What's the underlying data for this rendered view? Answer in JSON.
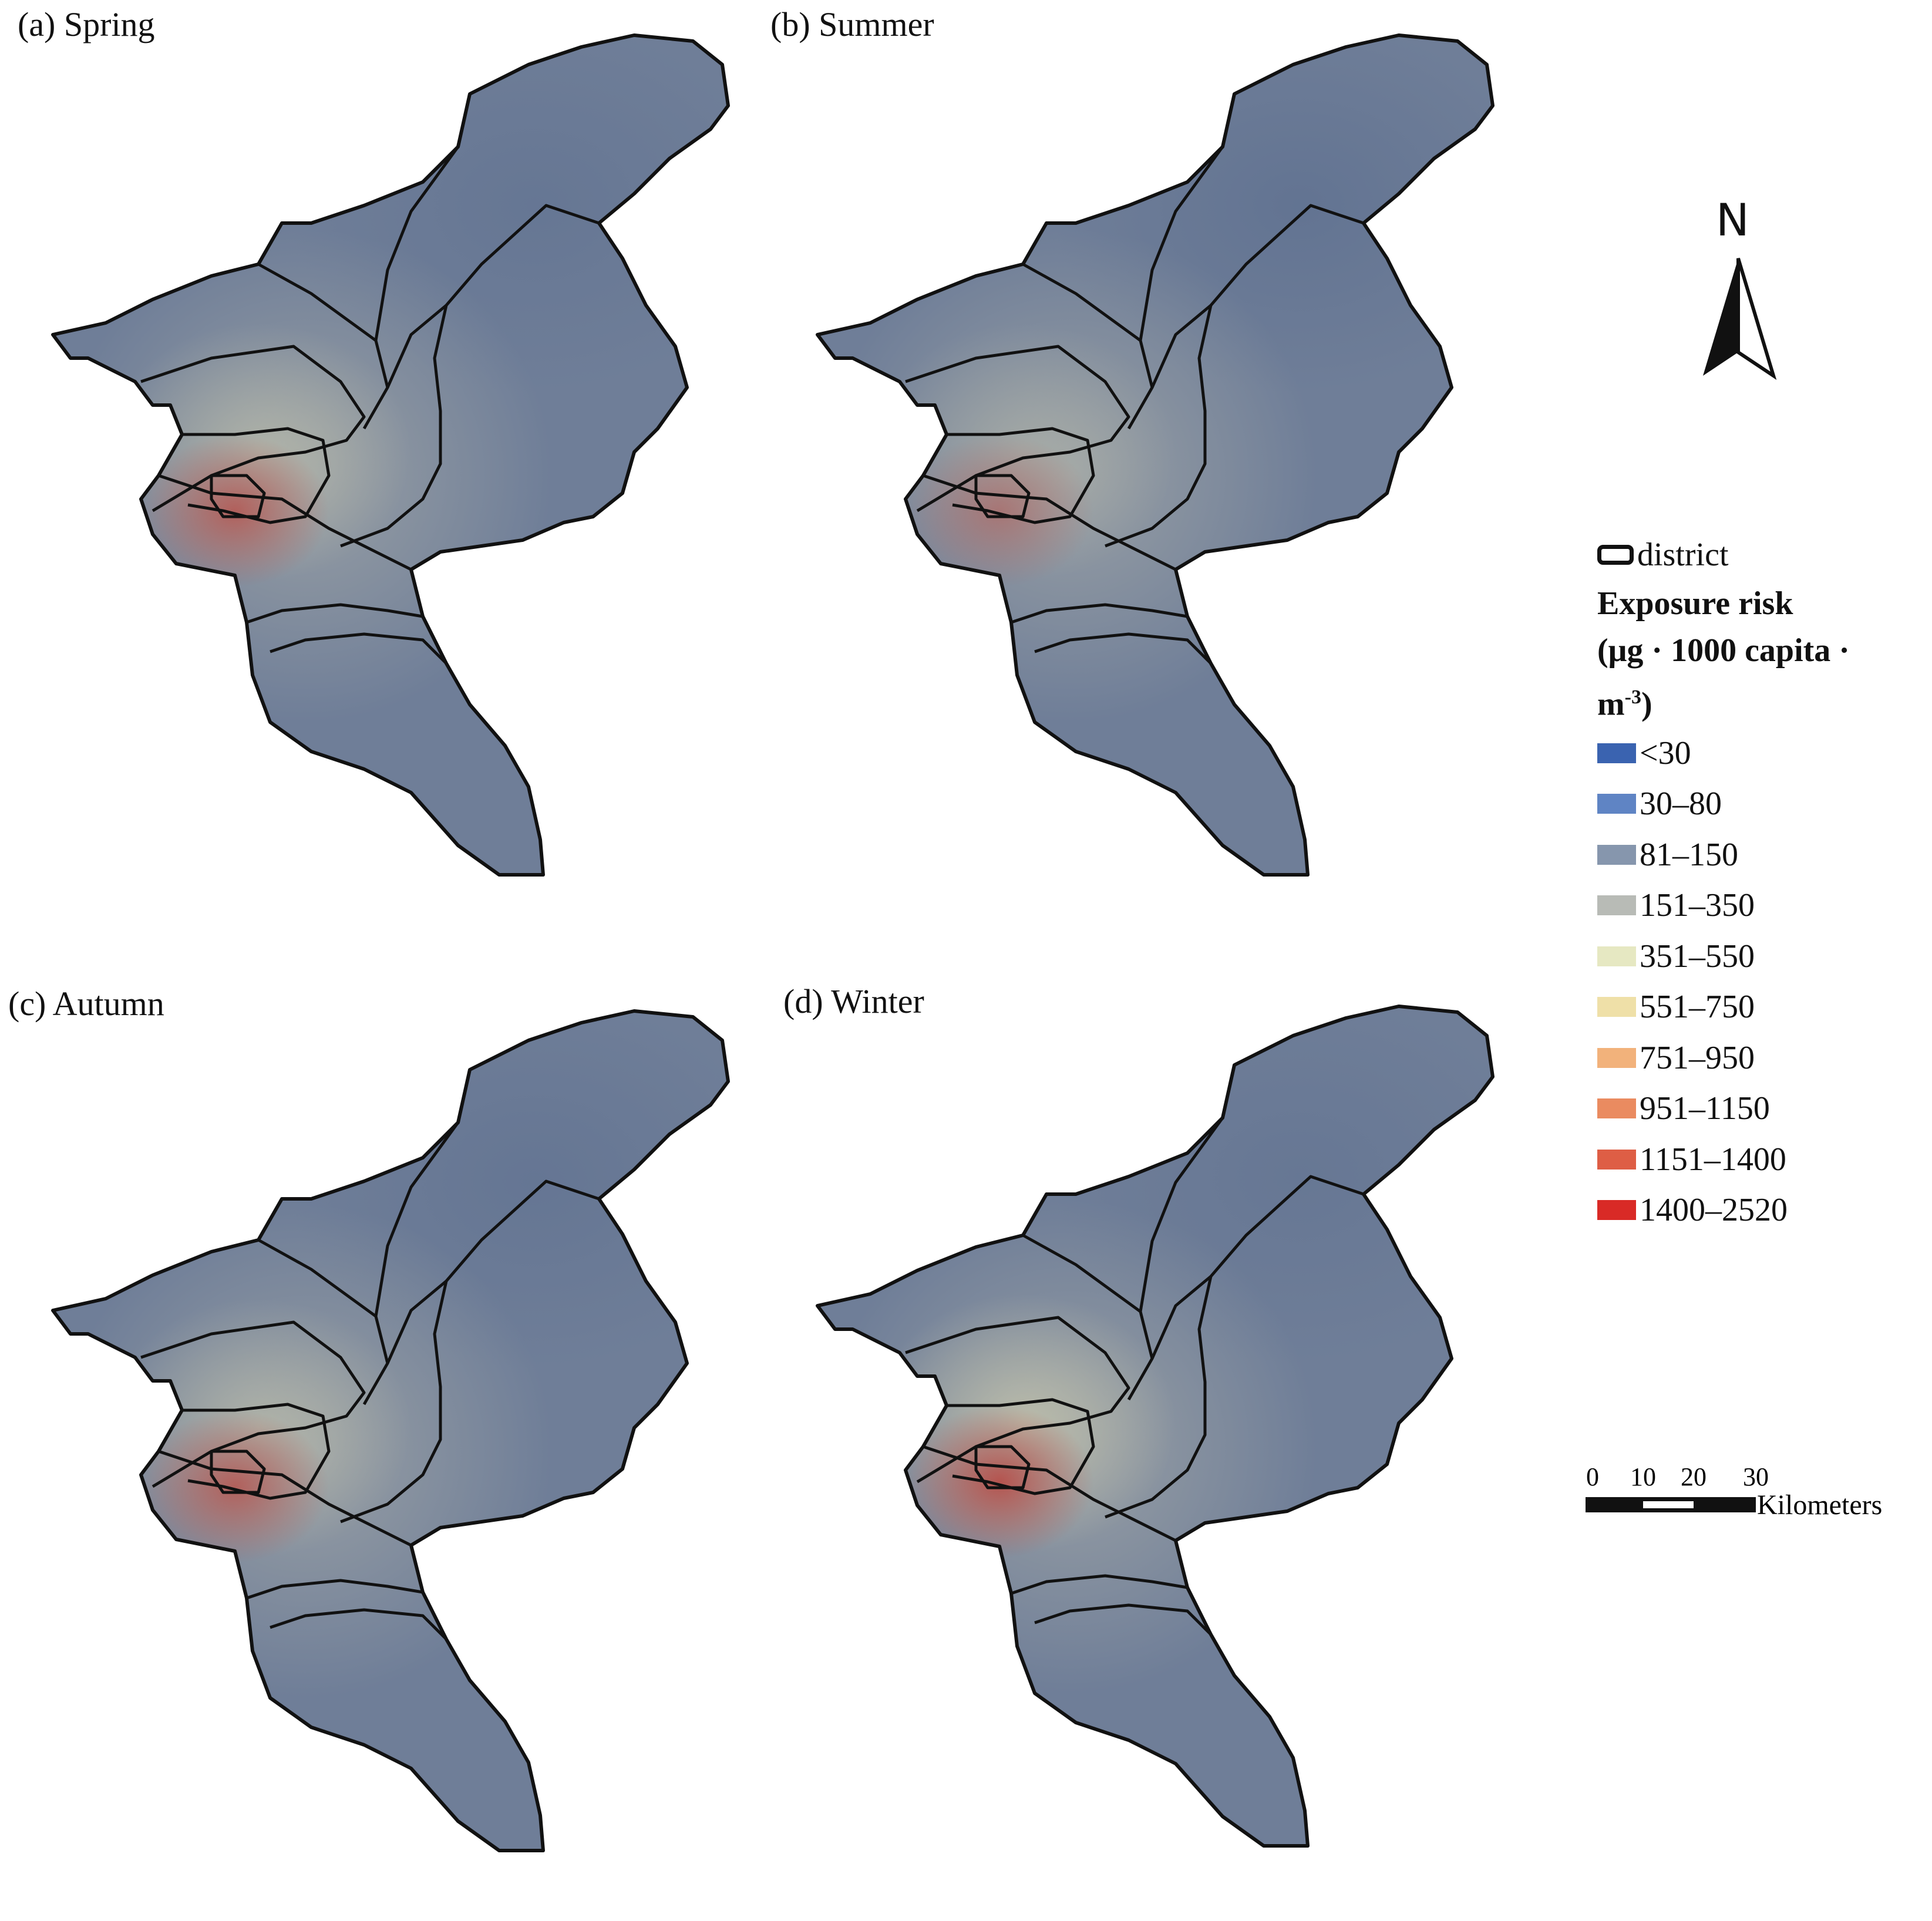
{
  "panels": [
    {
      "label": "(a) Spring",
      "hotspot": 0.85,
      "north_blue": 0.55,
      "mid_beige": 0.55
    },
    {
      "label": "(b) Summer",
      "hotspot": 0.55,
      "north_blue": 0.75,
      "mid_beige": 0.35
    },
    {
      "label": "(c) Autumn",
      "hotspot": 0.85,
      "north_blue": 0.6,
      "mid_beige": 0.55
    },
    {
      "label": "(d) Winter",
      "hotspot": 1.0,
      "north_blue": 0.5,
      "mid_beige": 0.75
    }
  ],
  "legend": {
    "district_label": "district",
    "title_line1": "Exposure risk",
    "title_line2": "(μg · 1000 capita ·",
    "title_line3_base": "m",
    "title_line3_sup": "-3",
    "title_line3_end": ")",
    "classes": [
      {
        "label": "<30",
        "color": "#3a63b0"
      },
      {
        "label": "30–80",
        "color": "#5f84c4"
      },
      {
        "label": "81–150",
        "color": "#8696ad"
      },
      {
        "label": "151–350",
        "color": "#b8bbb6"
      },
      {
        "label": "351–550",
        "color": "#e6e8c2"
      },
      {
        "label": "551–750",
        "color": "#efe0a8"
      },
      {
        "label": "751–950",
        "color": "#f2b27b"
      },
      {
        "label": "951–1150",
        "color": "#ea8b60"
      },
      {
        "label": "1151–1400",
        "color": "#de5e45"
      },
      {
        "label": "1400–2520",
        "color": "#d92a26"
      }
    ]
  },
  "north_arrow": {
    "letter": "N"
  },
  "scale_bar": {
    "ticks": [
      "0",
      "10",
      "20",
      "30"
    ],
    "unit": "Kilometers"
  },
  "colors": {
    "base_blue": "#6f7e98",
    "north_blue": "#5e7090",
    "mid_gray": "#9ea4a6",
    "beige": "#c8c7ad",
    "hotspot": "#b5544f",
    "outline": "#111111"
  }
}
